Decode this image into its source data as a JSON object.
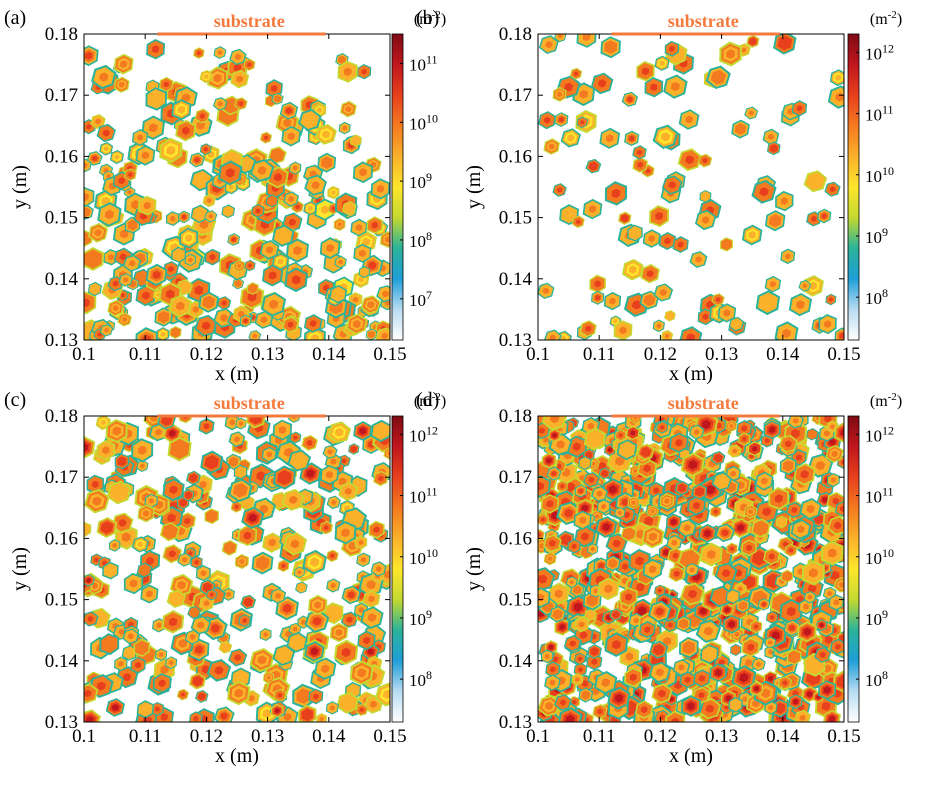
{
  "figure": {
    "substrate_label": "substrate",
    "colorbar_unit_base": "(m",
    "colorbar_unit_exp": "-2",
    "colorbar_unit_close": ")"
  },
  "colors": {
    "substrate": "#f47a3c",
    "colormap": [
      "#ffffff",
      "#b8dcf2",
      "#1f9ed8",
      "#2ab39a",
      "#c4d930",
      "#fde62c",
      "#fbb12a",
      "#f47a20",
      "#e8401d",
      "#c0161d",
      "#7e0b13"
    ]
  },
  "chart_data": [
    {
      "type": "heatmap",
      "panel_label": "(a)",
      "xlabel": "x (m)",
      "ylabel": "y (m)",
      "xlim": [
        0.1,
        0.15
      ],
      "ylim": [
        0.13,
        0.18
      ],
      "xticks": [
        "0.1",
        "0.11",
        "0.12",
        "0.13",
        "0.14",
        "0.15"
      ],
      "yticks": [
        "0.13",
        "0.14",
        "0.15",
        "0.16",
        "0.17",
        "0.18"
      ],
      "colorbar": {
        "scale": "log",
        "ticks": [
          "10",
          "10",
          "10",
          "10",
          "10"
        ],
        "tick_exponents": [
          "7",
          "8",
          "9",
          "10",
          "11"
        ],
        "tick_values": [
          7,
          8,
          9,
          10,
          11
        ],
        "range": [
          6.3,
          11.5
        ]
      },
      "particle_count": 320,
      "density_profile": "decreasing-toward-substrate",
      "peak_log_density": 10.6
    },
    {
      "type": "heatmap",
      "panel_label": "(b)",
      "xlabel": "x (m)",
      "ylabel": "y (m)",
      "xlim": [
        0.1,
        0.15
      ],
      "ylim": [
        0.13,
        0.18
      ],
      "xticks": [
        "0.1",
        "0.11",
        "0.12",
        "0.13",
        "0.14",
        "0.15"
      ],
      "yticks": [
        "0.13",
        "0.14",
        "0.15",
        "0.16",
        "0.17",
        "0.18"
      ],
      "colorbar": {
        "scale": "log",
        "ticks": [
          "10",
          "10",
          "10",
          "10",
          "10"
        ],
        "tick_exponents": [
          "8",
          "9",
          "10",
          "11",
          "12"
        ],
        "tick_values": [
          8,
          9,
          10,
          11,
          12
        ],
        "range": [
          7.3,
          12.3
        ]
      },
      "particle_count": 115,
      "density_profile": "uniform",
      "peak_log_density": 11.5
    },
    {
      "type": "heatmap",
      "panel_label": "(c)",
      "xlabel": "x (m)",
      "ylabel": "y (m)",
      "xlim": [
        0.1,
        0.15
      ],
      "ylim": [
        0.13,
        0.18
      ],
      "xticks": [
        "0.1",
        "0.11",
        "0.12",
        "0.13",
        "0.14",
        "0.15"
      ],
      "yticks": [
        "0.13",
        "0.14",
        "0.15",
        "0.16",
        "0.17",
        "0.18"
      ],
      "colorbar": {
        "scale": "log",
        "ticks": [
          "10",
          "10",
          "10",
          "10",
          "10"
        ],
        "tick_exponents": [
          "8",
          "9",
          "10",
          "11",
          "12"
        ],
        "tick_values": [
          8,
          9,
          10,
          11,
          12
        ],
        "range": [
          7.3,
          12.3
        ]
      },
      "particle_count": 330,
      "density_profile": "uniform",
      "peak_log_density": 11.6
    },
    {
      "type": "heatmap",
      "panel_label": "(d)",
      "xlabel": "x (m)",
      "ylabel": "y (m)",
      "xlim": [
        0.1,
        0.15
      ],
      "ylim": [
        0.13,
        0.18
      ],
      "xticks": [
        "0.1",
        "0.11",
        "0.12",
        "0.13",
        "0.14",
        "0.15"
      ],
      "yticks": [
        "0.13",
        "0.14",
        "0.15",
        "0.16",
        "0.17",
        "0.18"
      ],
      "colorbar": {
        "scale": "log",
        "ticks": [
          "10",
          "10",
          "10",
          "10",
          "10"
        ],
        "tick_exponents": [
          "8",
          "9",
          "10",
          "11",
          "12"
        ],
        "tick_values": [
          8,
          9,
          10,
          11,
          12
        ],
        "range": [
          7.3,
          12.3
        ]
      },
      "particle_count": 800,
      "density_profile": "uniform",
      "peak_log_density": 11.7
    }
  ]
}
